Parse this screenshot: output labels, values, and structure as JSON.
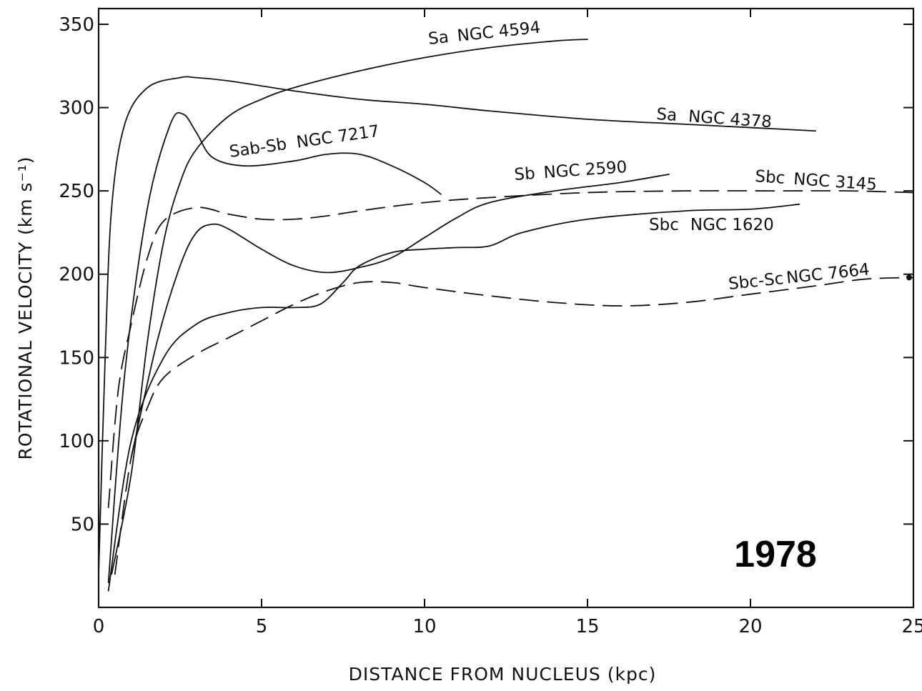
{
  "chart_data": {
    "type": "line",
    "title": "",
    "xlabel": "DISTANCE FROM NUCLEUS (kpc)",
    "ylabel": "ROTATIONAL VELOCITY (km s⁻¹)",
    "xlim": [
      0,
      25
    ],
    "ylim": [
      0,
      350
    ],
    "x_ticks": [
      0,
      5,
      10,
      15,
      20,
      25
    ],
    "y_ticks": [
      50,
      100,
      150,
      200,
      250,
      300,
      350
    ],
    "grid": false,
    "annotation": "1978",
    "series": [
      {
        "name": "Sa NGC 4594",
        "style": "solid",
        "points": [
          [
            0.4,
            20
          ],
          [
            1,
            80
          ],
          [
            1.5,
            160
          ],
          [
            2,
            220
          ],
          [
            2.5,
            255
          ],
          [
            3,
            275
          ],
          [
            4,
            295
          ],
          [
            5,
            305
          ],
          [
            6,
            312
          ],
          [
            8,
            322
          ],
          [
            10,
            330
          ],
          [
            12,
            336
          ],
          [
            14,
            340
          ],
          [
            15,
            341
          ]
        ]
      },
      {
        "name": "Sa NGC 4378",
        "style": "solid",
        "points": [
          [
            0,
            20
          ],
          [
            0.2,
            150
          ],
          [
            0.4,
            240
          ],
          [
            0.8,
            290
          ],
          [
            1.5,
            312
          ],
          [
            2.5,
            318
          ],
          [
            3,
            318
          ],
          [
            4,
            316
          ],
          [
            6,
            310
          ],
          [
            8,
            305
          ],
          [
            10,
            302
          ],
          [
            12,
            298
          ],
          [
            15,
            293
          ],
          [
            18,
            290
          ],
          [
            20,
            288
          ],
          [
            22,
            286
          ]
        ]
      },
      {
        "name": "Sab-Sb NGC 7217",
        "style": "solid",
        "points": [
          [
            0.3,
            15
          ],
          [
            0.8,
            140
          ],
          [
            1.5,
            240
          ],
          [
            2.2,
            290
          ],
          [
            2.6,
            296
          ],
          [
            3,
            285
          ],
          [
            3.5,
            270
          ],
          [
            4.5,
            265
          ],
          [
            6,
            268
          ],
          [
            7,
            272
          ],
          [
            8,
            272
          ],
          [
            9,
            265
          ],
          [
            10,
            255
          ],
          [
            10.5,
            248
          ]
        ]
      },
      {
        "name": "Sb NGC 2590",
        "style": "solid",
        "points": [
          [
            1,
            90
          ],
          [
            1.8,
            160
          ],
          [
            2.5,
            205
          ],
          [
            3,
            225
          ],
          [
            3.5,
            230
          ],
          [
            4,
            227
          ],
          [
            5,
            215
          ],
          [
            6,
            205
          ],
          [
            7,
            201
          ],
          [
            8,
            204
          ],
          [
            9,
            210
          ],
          [
            10,
            222
          ],
          [
            11,
            234
          ],
          [
            12,
            243
          ],
          [
            14,
            250
          ],
          [
            16,
            255
          ],
          [
            17.5,
            260
          ]
        ]
      },
      {
        "name": "Sbc NGC 3145",
        "style": "dashed",
        "points": [
          [
            0.3,
            60
          ],
          [
            0.6,
            130
          ],
          [
            1,
            170
          ],
          [
            1.5,
            210
          ],
          [
            2,
            232
          ],
          [
            3,
            240
          ],
          [
            4,
            236
          ],
          [
            5,
            233
          ],
          [
            6,
            233
          ],
          [
            7,
            235
          ],
          [
            8,
            238
          ],
          [
            10,
            243
          ],
          [
            12,
            246
          ],
          [
            15,
            249
          ],
          [
            18,
            250
          ],
          [
            21,
            250
          ],
          [
            23,
            250
          ],
          [
            25,
            249
          ]
        ]
      },
      {
        "name": "Sbc NGC 1620",
        "style": "solid",
        "points": [
          [
            0.3,
            10
          ],
          [
            1,
            100
          ],
          [
            2,
            150
          ],
          [
            3,
            170
          ],
          [
            4,
            177
          ],
          [
            5,
            180
          ],
          [
            6,
            180
          ],
          [
            6.8,
            182
          ],
          [
            7.5,
            195
          ],
          [
            8,
            205
          ],
          [
            9,
            213
          ],
          [
            10,
            215
          ],
          [
            11,
            216
          ],
          [
            12,
            217
          ],
          [
            13,
            225
          ],
          [
            15,
            233
          ],
          [
            18,
            238
          ],
          [
            20,
            239
          ],
          [
            21.5,
            242
          ]
        ]
      },
      {
        "name": "Sbc-Sc NGC 7664",
        "style": "dashed",
        "points": [
          [
            0.5,
            20
          ],
          [
            1,
            90
          ],
          [
            1.5,
            120
          ],
          [
            2,
            138
          ],
          [
            3,
            152
          ],
          [
            4,
            162
          ],
          [
            5,
            172
          ],
          [
            6,
            182
          ],
          [
            7,
            190
          ],
          [
            8,
            195
          ],
          [
            9,
            195
          ],
          [
            10,
            192
          ],
          [
            12,
            187
          ],
          [
            14,
            183
          ],
          [
            16,
            181
          ],
          [
            18,
            183
          ],
          [
            20,
            188
          ],
          [
            22,
            193
          ],
          [
            23.5,
            197
          ],
          [
            25,
            198
          ]
        ]
      }
    ],
    "label_positions": [
      {
        "series": "Sa NGC 4594",
        "text_parts": [
          "Sa",
          "NGC 4594"
        ]
      },
      {
        "series": "Sa NGC 4378",
        "text_parts": [
          "Sa",
          "NGC 4378"
        ]
      },
      {
        "series": "Sab-Sb NGC 7217",
        "text_parts": [
          "Sab-Sb",
          "NGC 7217"
        ]
      },
      {
        "series": "Sb NGC 2590",
        "text_parts": [
          "Sb",
          "NGC 2590"
        ]
      },
      {
        "series": "Sbc NGC 3145",
        "text_parts": [
          "Sbc",
          "NGC 3145"
        ]
      },
      {
        "series": "Sbc NGC 1620",
        "text_parts": [
          "Sbc",
          "NGC 1620"
        ]
      },
      {
        "series": "Sbc-Sc NGC 7664",
        "text_parts": [
          "Sbc-Sc",
          "NGC 7664"
        ]
      }
    ]
  }
}
